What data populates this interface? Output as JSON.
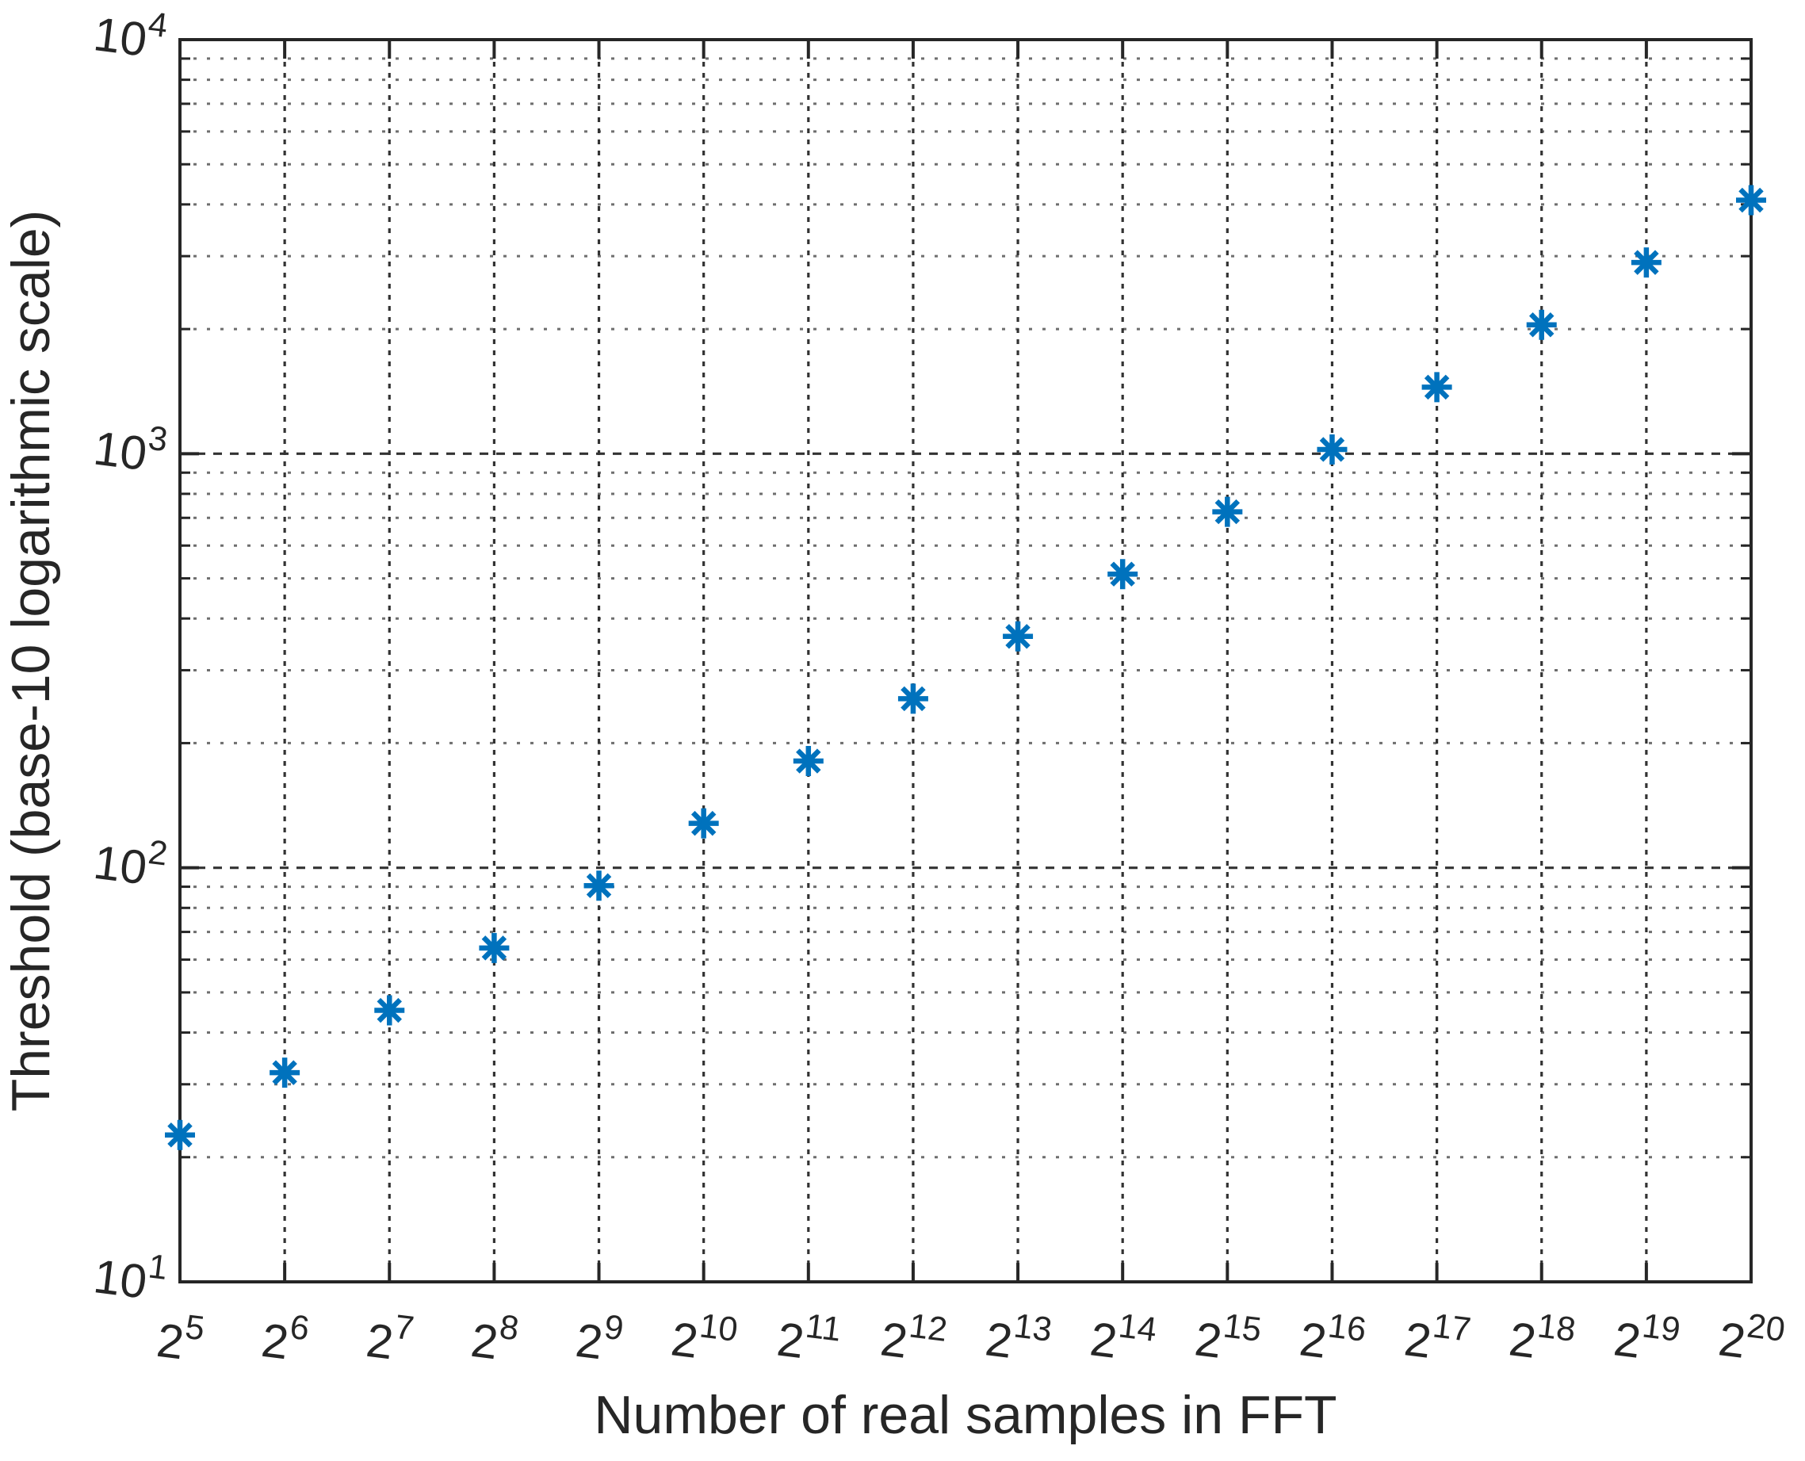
{
  "chart_data": {
    "type": "scatter",
    "title": "",
    "xlabel": "Number of real samples in FFT",
    "ylabel": "Threshold (base-10 logarithmic scale)",
    "x_scale": "log2",
    "y_scale": "log10",
    "xlim_exponents": [
      5,
      20
    ],
    "ylim": [
      10,
      10000
    ],
    "x_tick_base": "2",
    "x_tick_exponents": [
      5,
      6,
      7,
      8,
      9,
      10,
      11,
      12,
      13,
      14,
      15,
      16,
      17,
      18,
      19,
      20
    ],
    "x_tick_labels": [
      "2^5",
      "2^6",
      "2^7",
      "2^8",
      "2^9",
      "2^10",
      "2^11",
      "2^12",
      "2^13",
      "2^14",
      "2^15",
      "2^16",
      "2^17",
      "2^18",
      "2^19",
      "2^20"
    ],
    "y_tick_base": "10",
    "y_tick_exponents": [
      1,
      2,
      3,
      4
    ],
    "y_tick_values": [
      10,
      100,
      1000,
      10000
    ],
    "y_tick_labels": [
      "10^1",
      "10^2",
      "10^3",
      "10^4"
    ],
    "grid": "on",
    "grid_style": "dotted",
    "minor_grid": "on",
    "minor_grid_style": "dotted",
    "legend": "none",
    "marker_style": "asterisk",
    "series": [
      {
        "name": "Threshold",
        "x_exponents": [
          5,
          6,
          7,
          8,
          9,
          10,
          11,
          12,
          13,
          14,
          15,
          16,
          17,
          18,
          19,
          20
        ],
        "values": [
          22.63,
          32,
          45.25,
          64,
          90.51,
          128,
          181.02,
          256,
          362.04,
          512,
          724.08,
          1024,
          1448.15,
          2048,
          2896.31,
          4096
        ]
      }
    ]
  },
  "colors": {
    "marker": "#0072BD",
    "axis": "#262626",
    "text": "#262626",
    "grid_major": "#333333",
    "grid_vertical": "#333333",
    "grid_minor": "#6e6e6e",
    "background": "#ffffff"
  }
}
